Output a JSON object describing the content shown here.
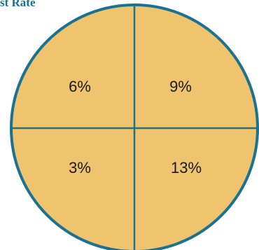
{
  "title": "st Rate",
  "colors": {
    "fill": "#f0c46e",
    "stroke": "#1b7190",
    "title": "#1b6e8f"
  },
  "quadrants": {
    "top_left": "6%",
    "top_right": "9%",
    "bottom_left": "3%",
    "bottom_right": "13%"
  }
}
